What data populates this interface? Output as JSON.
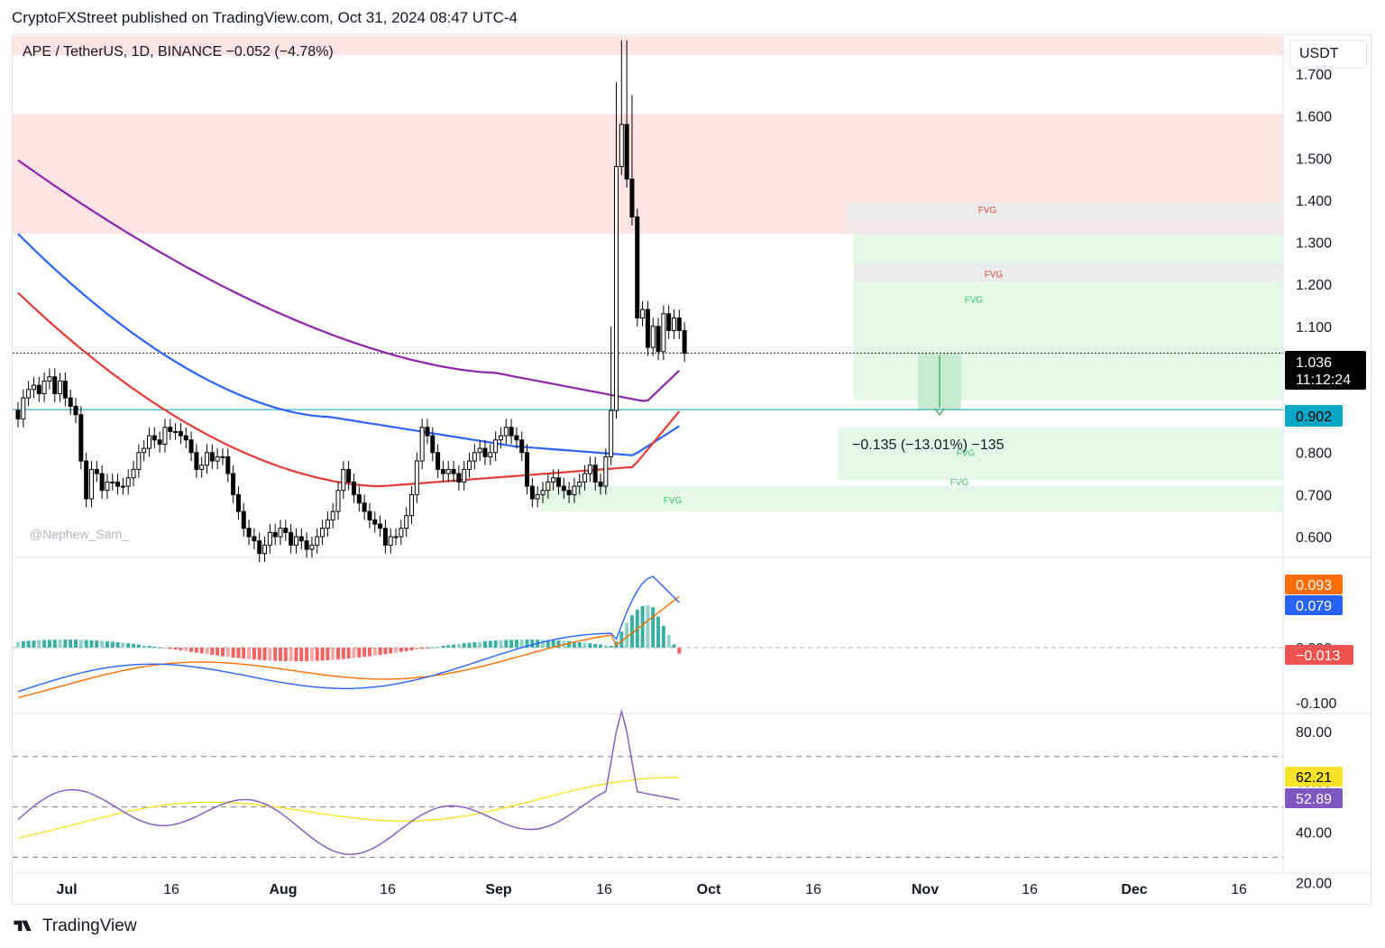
{
  "header": {
    "published_text": "CryptoFXStreet published on TradingView.com, Oct 31, 2024 08:47 UTC-4"
  },
  "symbol_line": "APE / TetherUS, 1D, BINANCE  −0.052 (−4.78%)",
  "currency_button": "USDT",
  "watermark": "@Nephew_Sam_",
  "footer": {
    "brand": "TradingView",
    "logo_icon": "tradingview-logo-icon"
  },
  "colors": {
    "up_candle": "#ffffff",
    "down_candle": "#000000",
    "ma_red": "#e53935",
    "ma_blue": "#2962ff",
    "ma_purple": "#8e24aa",
    "supply_zone": "#fde3e3",
    "fvg_green": "#e3f8e7",
    "fvg_gray": "#ebebeb",
    "macd_line": "#2962ff",
    "signal_line": "#ff6d00",
    "rsi_line": "#7e57c2",
    "rsi_ma": "#f7e22a"
  },
  "chart_data": [
    {
      "type": "candlestick",
      "title": "APE / TetherUS, 1D, BINANCE",
      "x_axis_ticks": [
        "Jul",
        "16",
        "Aug",
        "16",
        "Sep",
        "16",
        "Oct",
        "16",
        "Nov",
        "16",
        "Dec",
        "16"
      ],
      "y_axis_ticks": [
        "0.600",
        "0.700",
        "0.800",
        "0.900",
        "1.000",
        "1.100",
        "1.200",
        "1.300",
        "1.400",
        "1.500",
        "1.600",
        "1.700"
      ],
      "ylim": [
        0.555,
        1.79
      ],
      "x_range": [
        "2024-06-25",
        "2024-12-25"
      ],
      "price_labels": {
        "last_price": "1.036",
        "countdown": "11:12:24",
        "level": "0.902"
      },
      "measure_label": "−0.135 (−13.01%) −135",
      "zone_labels": [
        "FVG",
        "FVG",
        "FVG",
        "FVG",
        "FVG",
        "FVG"
      ],
      "close": [
        0.88,
        0.93,
        0.95,
        0.96,
        0.94,
        0.97,
        0.98,
        0.94,
        0.97,
        0.93,
        0.91,
        0.89,
        0.78,
        0.69,
        0.76,
        0.75,
        0.71,
        0.73,
        0.73,
        0.72,
        0.72,
        0.74,
        0.76,
        0.8,
        0.81,
        0.84,
        0.83,
        0.82,
        0.86,
        0.85,
        0.85,
        0.84,
        0.83,
        0.8,
        0.76,
        0.77,
        0.8,
        0.78,
        0.79,
        0.79,
        0.75,
        0.7,
        0.66,
        0.62,
        0.6,
        0.59,
        0.56,
        0.58,
        0.61,
        0.6,
        0.62,
        0.61,
        0.58,
        0.6,
        0.59,
        0.57,
        0.58,
        0.6,
        0.62,
        0.64,
        0.66,
        0.71,
        0.76,
        0.73,
        0.7,
        0.68,
        0.66,
        0.64,
        0.63,
        0.62,
        0.58,
        0.6,
        0.6,
        0.62,
        0.65,
        0.7,
        0.78,
        0.86,
        0.84,
        0.8,
        0.76,
        0.75,
        0.76,
        0.75,
        0.73,
        0.76,
        0.78,
        0.8,
        0.81,
        0.79,
        0.8,
        0.83,
        0.84,
        0.86,
        0.84,
        0.83,
        0.8,
        0.72,
        0.69,
        0.7,
        0.71,
        0.73,
        0.74,
        0.72,
        0.71,
        0.7,
        0.72,
        0.73,
        0.75,
        0.77,
        0.73,
        0.72,
        0.79,
        0.9,
        1.48,
        1.58,
        1.45,
        1.36,
        1.12,
        1.14,
        1.05,
        1.1,
        1.04,
        1.13,
        1.09,
        1.12,
        1.09,
        1.036
      ],
      "open_first": 0.9,
      "moving_averages": [
        {
          "name": "",
          "color": "ma_red",
          "start": 1.18,
          "end": 0.902
        },
        {
          "name": "",
          "color": "ma_blue",
          "start": 1.32,
          "end": 0.865
        },
        {
          "name": "",
          "color": "ma_purple",
          "start": 1.495,
          "end": 0.99
        }
      ]
    },
    {
      "type": "macd",
      "y_axis_ticks": [
        "0.000",
        "-0.100"
      ],
      "labels": {
        "signal": "0.093",
        "macd": "0.079",
        "histogram": "−0.013"
      }
    },
    {
      "type": "rsi",
      "y_axis_ticks": [
        "80.00",
        "60.00",
        "40.00",
        "20.00"
      ],
      "ylim": [
        14,
        90
      ],
      "levels": [
        70,
        50,
        30
      ],
      "labels": {
        "rsi_ma": "62.21",
        "rsi": "52.89"
      }
    }
  ]
}
